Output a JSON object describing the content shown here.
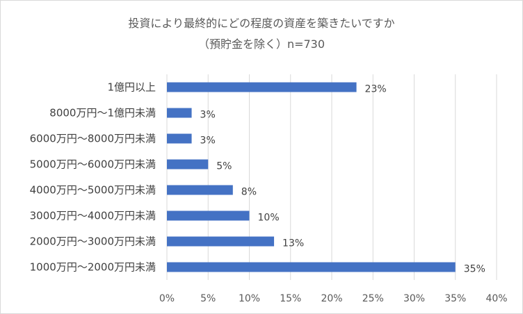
{
  "chart_data": {
    "type": "bar",
    "orientation": "horizontal",
    "title": "投資により最終的にどの程度の資産を築きたいですか",
    "subtitle": "（預貯金を除く）n=730",
    "categories": [
      "1億円以上",
      "8000万円～1億円未満",
      "6000万円～8000万円未満",
      "5000万円～6000万円未満",
      "4000万円～5000万円未満",
      "3000万円～4000万円未満",
      "2000万円～3000万円未満",
      "1000万円～2000万円未満"
    ],
    "values": [
      23,
      3,
      3,
      5,
      8,
      10,
      13,
      35
    ],
    "data_labels": [
      "23%",
      "3%",
      "3%",
      "5%",
      "8%",
      "10%",
      "13%",
      "35%"
    ],
    "xlim": [
      0,
      40
    ],
    "x_ticks": [
      0,
      5,
      10,
      15,
      20,
      25,
      30,
      35,
      40
    ],
    "x_tick_labels": [
      "0%",
      "5%",
      "10%",
      "15%",
      "20%",
      "25%",
      "30%",
      "35%",
      "40%"
    ],
    "grid": "vertical",
    "legend": "none",
    "bar_color": "#4472c4",
    "grid_color": "#d9d9d9"
  }
}
